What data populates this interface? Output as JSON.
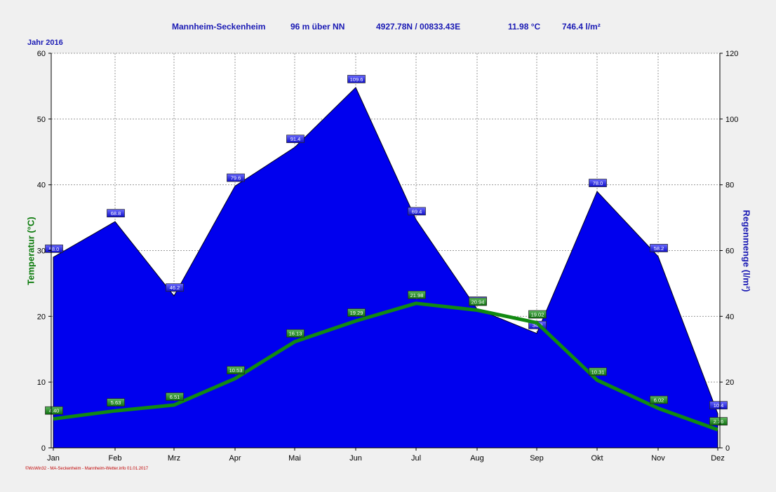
{
  "header": {
    "station": "Mannheim-Seckenheim",
    "altitude": "96 m über NN",
    "coords": "4927.78N / 00833.43E",
    "mean_temp": "11.98 °C",
    "total_rain": "746.4 l/m²"
  },
  "year_label": "Jahr 2016",
  "footer": "©WsWin32 - MA-Seckenheim - Mannheim-Wetter.info 01.01.2017",
  "colors": {
    "rain": "#0000ee",
    "temp": "#118a11",
    "title": "#1a1ab4",
    "grid": "#999999"
  },
  "chart_data": {
    "type": "area",
    "categories": [
      "Jan",
      "Feb",
      "Mrz",
      "Apr",
      "Mai",
      "Jun",
      "Jul",
      "Aug",
      "Sep",
      "Okt",
      "Nov",
      "Dez"
    ],
    "ylabel_left": "Temperatur  (°C)",
    "ylabel_right": "Regenmenge  (l/m²)",
    "ylim_left": [
      0,
      60
    ],
    "ylim_right": [
      0,
      120
    ],
    "yticks_left": [
      0,
      10,
      20,
      30,
      40,
      50,
      60
    ],
    "yticks_right": [
      0,
      20,
      40,
      60,
      80,
      100,
      120
    ],
    "grid": true,
    "series": [
      {
        "name": "Regenmenge",
        "type": "area",
        "axis": "right",
        "values": [
          58.0,
          68.8,
          46.2,
          79.6,
          91.4,
          109.6,
          69.4,
          42.2,
          34.8,
          78.0,
          58.2,
          10.4
        ],
        "labels": [
          "58.0",
          "68.8",
          "46.2",
          "79.6",
          "91.4",
          "109.6",
          "69.4",
          "42.2",
          "34.8",
          "78.0",
          "58.2",
          "10.4"
        ]
      },
      {
        "name": "Temperatur",
        "type": "line",
        "axis": "left",
        "values": [
          4.4,
          5.63,
          6.51,
          10.53,
          16.13,
          19.29,
          21.98,
          20.94,
          19.02,
          10.31,
          6.02,
          2.76
        ],
        "labels": [
          "4.40",
          "5.63",
          "6.51",
          "10.53",
          "16.13",
          "19.29",
          "21.98",
          "20.94",
          "19.02",
          "10.31",
          "6.02",
          "2.76"
        ]
      }
    ]
  }
}
